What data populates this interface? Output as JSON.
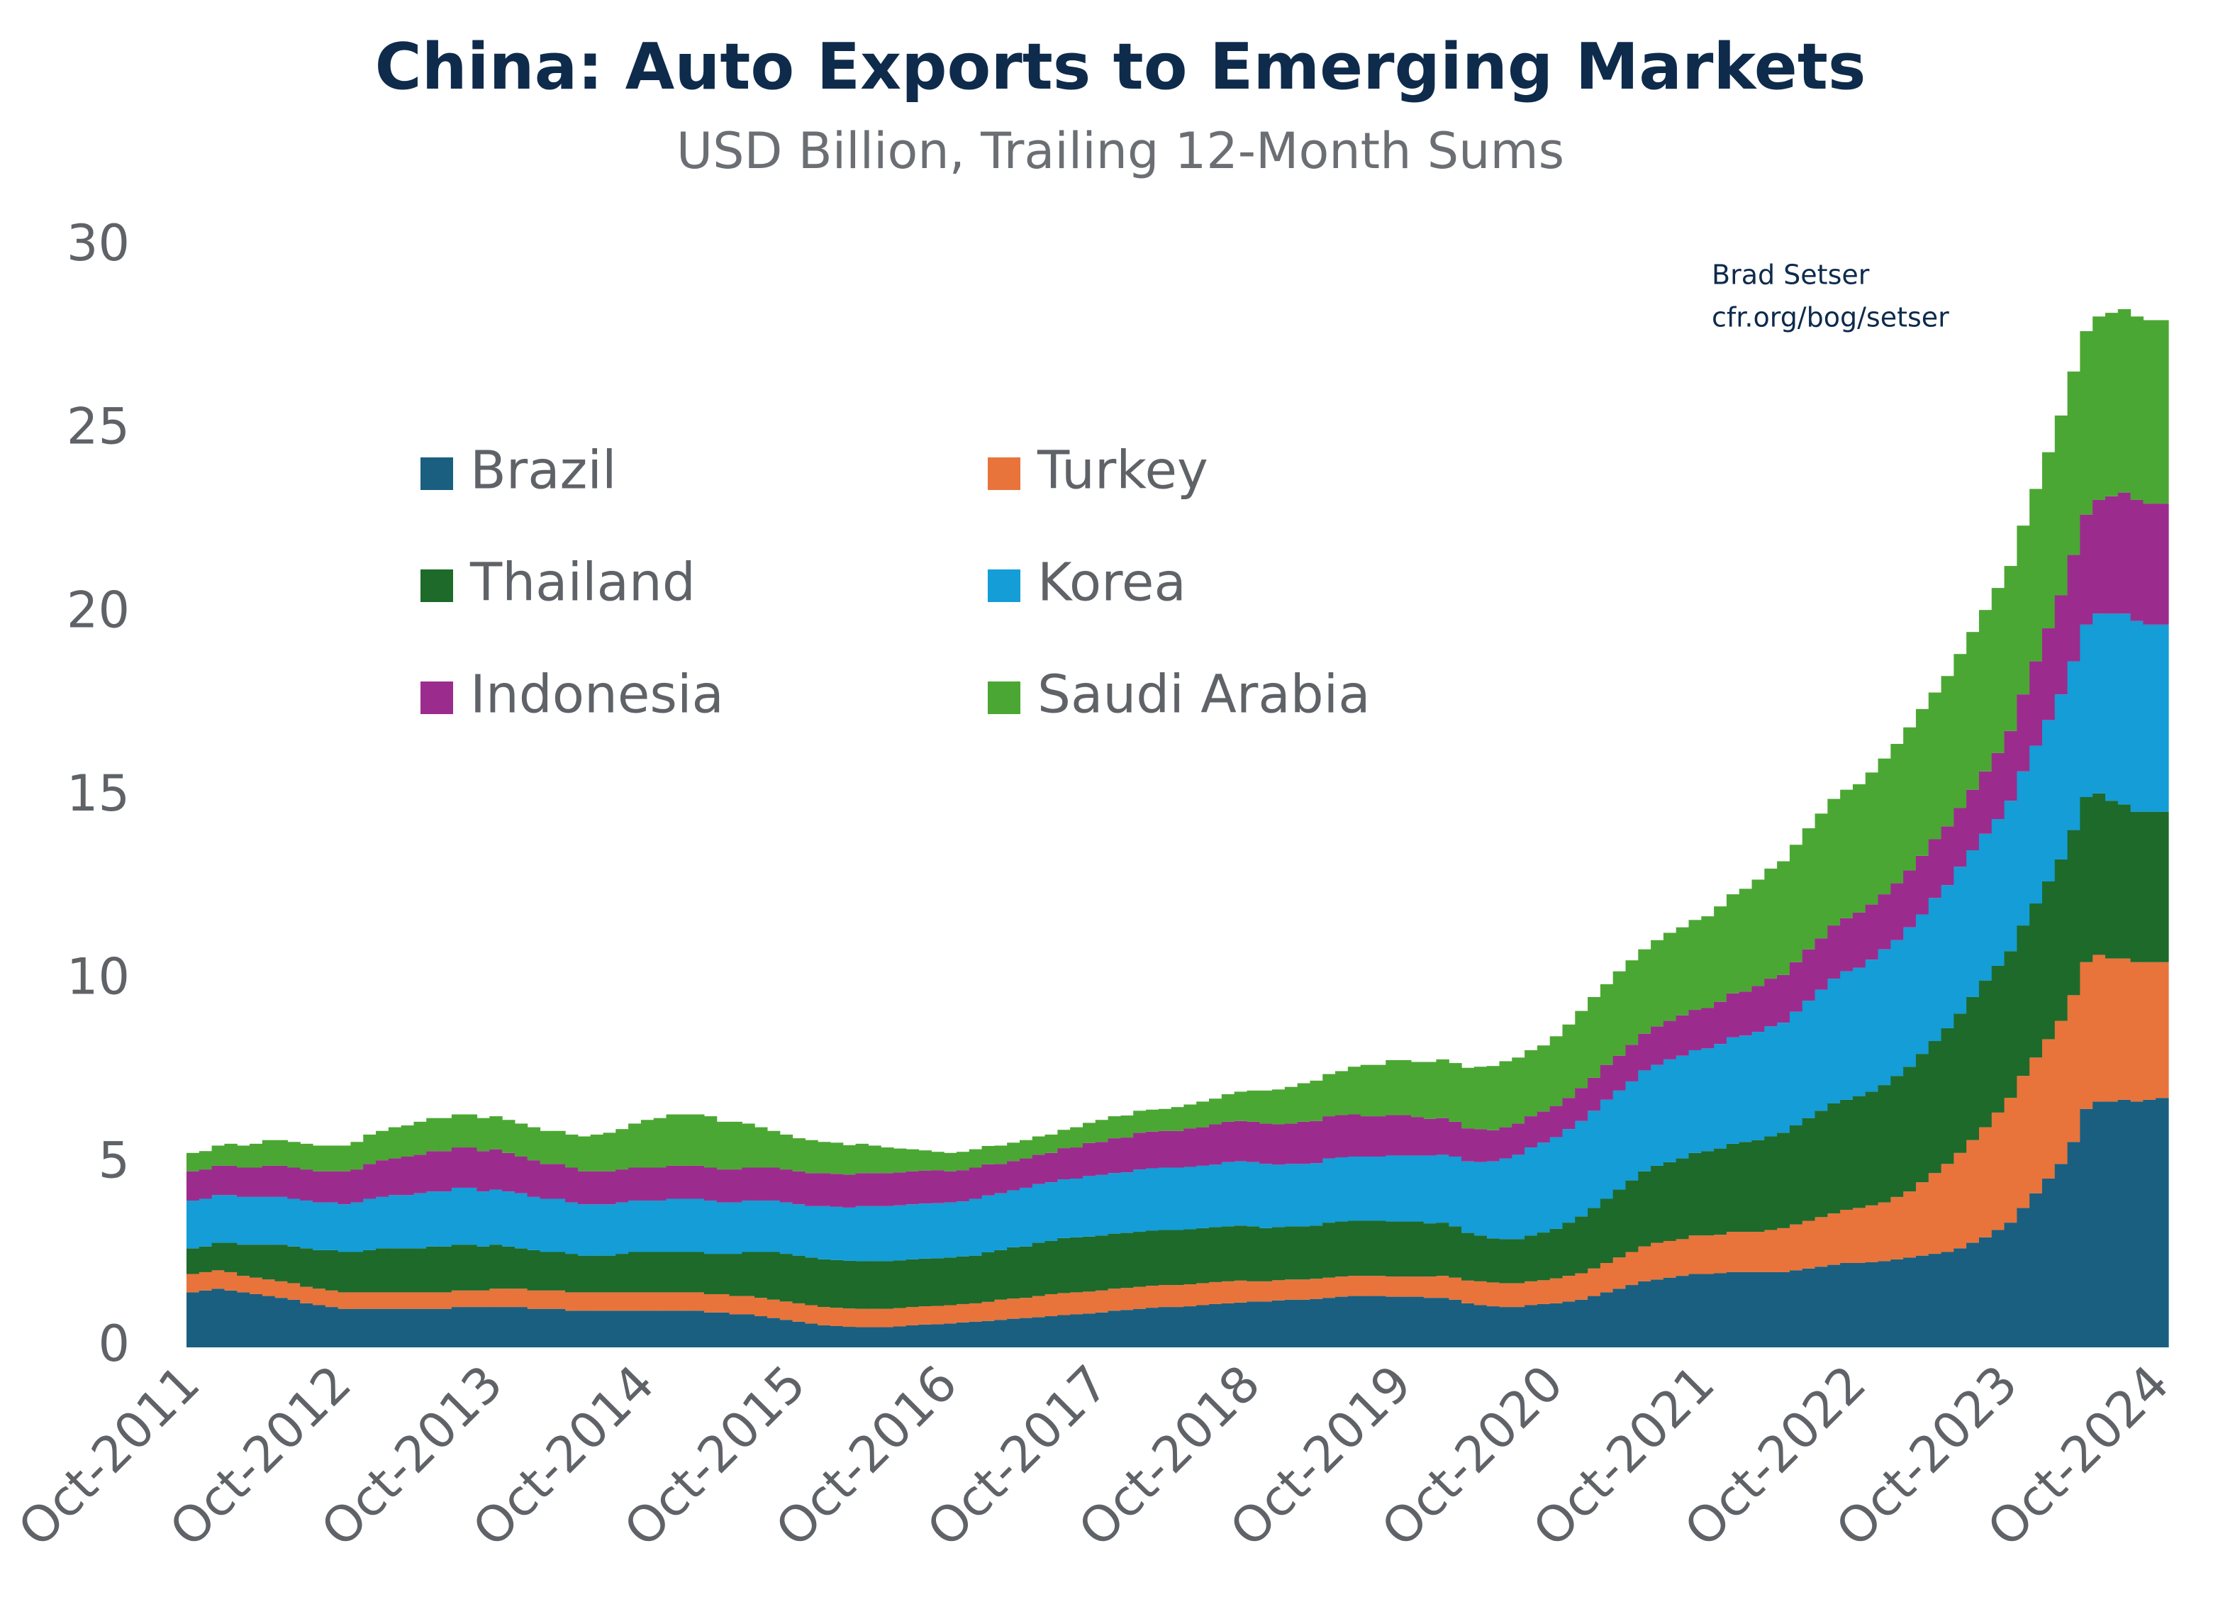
{
  "chart_data": {
    "type": "stacked_bar",
    "title": "China: Auto Exports to Emerging Markets",
    "subtitle": "USD Billion, Trailing 12-Month Sums",
    "annotations": [
      "Brad Setser",
      "cfr.org/bog/setser"
    ],
    "ylim": [
      0,
      30
    ],
    "yticks": [
      0,
      5,
      10,
      15,
      20,
      25,
      30
    ],
    "grid": false,
    "categories": [
      "Oct-2011",
      null,
      null,
      null,
      null,
      null,
      null,
      null,
      null,
      null,
      null,
      null,
      "Oct-2012",
      null,
      null,
      null,
      null,
      null,
      null,
      null,
      null,
      null,
      null,
      null,
      "Oct-2013",
      null,
      null,
      null,
      null,
      null,
      null,
      null,
      null,
      null,
      null,
      null,
      "Oct-2014",
      null,
      null,
      null,
      null,
      null,
      null,
      null,
      null,
      null,
      null,
      null,
      "Oct-2015",
      null,
      null,
      null,
      null,
      null,
      null,
      null,
      null,
      null,
      null,
      null,
      "Oct-2016",
      null,
      null,
      null,
      null,
      null,
      null,
      null,
      null,
      null,
      null,
      null,
      "Oct-2017",
      null,
      null,
      null,
      null,
      null,
      null,
      null,
      null,
      null,
      null,
      null,
      "Oct-2018",
      null,
      null,
      null,
      null,
      null,
      null,
      null,
      null,
      null,
      null,
      null,
      "Oct-2019",
      null,
      null,
      null,
      null,
      null,
      null,
      null,
      null,
      null,
      null,
      null,
      "Oct-2020",
      null,
      null,
      null,
      null,
      null,
      null,
      null,
      null,
      null,
      null,
      null,
      "Oct-2021",
      null,
      null,
      null,
      null,
      null,
      null,
      null,
      null,
      null,
      null,
      null,
      "Oct-2022",
      null,
      null,
      null,
      null,
      null,
      null,
      null,
      null,
      null,
      null,
      null,
      "Oct-2023",
      null,
      null,
      null,
      null,
      null,
      null,
      null,
      null,
      null,
      null,
      null,
      "Oct-2024"
    ],
    "series": [
      {
        "name": "Brazil",
        "color": "#1a5f80",
        "values": [
          1.5,
          1.55,
          1.6,
          1.55,
          1.5,
          1.45,
          1.4,
          1.35,
          1.3,
          1.2,
          1.15,
          1.1,
          1.05,
          1.05,
          1.05,
          1.05,
          1.05,
          1.05,
          1.05,
          1.05,
          1.05,
          1.1,
          1.1,
          1.1,
          1.1,
          1.1,
          1.1,
          1.05,
          1.05,
          1.05,
          1.0,
          1.0,
          1.0,
          1.0,
          1.0,
          1.0,
          1.0,
          1.0,
          1.0,
          1.0,
          1.0,
          0.95,
          0.95,
          0.9,
          0.9,
          0.85,
          0.8,
          0.75,
          0.7,
          0.65,
          0.6,
          0.58,
          0.56,
          0.55,
          0.55,
          0.55,
          0.57,
          0.6,
          0.62,
          0.63,
          0.65,
          0.68,
          0.7,
          0.72,
          0.75,
          0.78,
          0.8,
          0.82,
          0.85,
          0.88,
          0.9,
          0.92,
          0.95,
          1.0,
          1.02,
          1.05,
          1.08,
          1.1,
          1.1,
          1.12,
          1.15,
          1.18,
          1.2,
          1.22,
          1.25,
          1.25,
          1.28,
          1.3,
          1.3,
          1.32,
          1.35,
          1.38,
          1.4,
          1.4,
          1.4,
          1.38,
          1.38,
          1.38,
          1.35,
          1.35,
          1.3,
          1.2,
          1.15,
          1.12,
          1.1,
          1.1,
          1.15,
          1.18,
          1.2,
          1.25,
          1.3,
          1.4,
          1.5,
          1.6,
          1.7,
          1.8,
          1.85,
          1.9,
          1.95,
          2.0,
          2.0,
          2.02,
          2.05,
          2.05,
          2.05,
          2.05,
          2.05,
          2.1,
          2.15,
          2.2,
          2.25,
          2.3,
          2.3,
          2.32,
          2.35,
          2.4,
          2.45,
          2.5,
          2.55,
          2.6,
          2.7,
          2.85,
          3.0,
          3.2,
          3.4,
          3.8,
          4.2,
          4.6,
          5.0,
          5.6,
          6.5,
          6.7,
          6.7,
          6.75,
          6.7,
          6.75,
          6.8
        ]
      },
      {
        "name": "Turkey",
        "color": "#e8743b",
        "values": [
          0.5,
          0.5,
          0.5,
          0.5,
          0.45,
          0.45,
          0.45,
          0.45,
          0.45,
          0.45,
          0.45,
          0.45,
          0.45,
          0.45,
          0.45,
          0.45,
          0.45,
          0.45,
          0.45,
          0.45,
          0.45,
          0.45,
          0.45,
          0.45,
          0.5,
          0.5,
          0.5,
          0.5,
          0.5,
          0.5,
          0.5,
          0.5,
          0.5,
          0.5,
          0.5,
          0.5,
          0.5,
          0.5,
          0.5,
          0.5,
          0.5,
          0.5,
          0.5,
          0.5,
          0.5,
          0.5,
          0.5,
          0.5,
          0.5,
          0.5,
          0.5,
          0.5,
          0.5,
          0.5,
          0.5,
          0.5,
          0.5,
          0.5,
          0.5,
          0.5,
          0.5,
          0.5,
          0.5,
          0.52,
          0.55,
          0.55,
          0.55,
          0.58,
          0.6,
          0.6,
          0.6,
          0.6,
          0.6,
          0.6,
          0.6,
          0.6,
          0.6,
          0.6,
          0.6,
          0.6,
          0.6,
          0.6,
          0.6,
          0.6,
          0.55,
          0.55,
          0.55,
          0.55,
          0.55,
          0.55,
          0.55,
          0.55,
          0.55,
          0.55,
          0.55,
          0.55,
          0.55,
          0.55,
          0.58,
          0.6,
          0.6,
          0.62,
          0.65,
          0.65,
          0.65,
          0.65,
          0.65,
          0.65,
          0.68,
          0.7,
          0.72,
          0.75,
          0.8,
          0.85,
          0.9,
          0.95,
          1.0,
          1.0,
          1.0,
          1.05,
          1.05,
          1.05,
          1.1,
          1.1,
          1.1,
          1.15,
          1.2,
          1.25,
          1.3,
          1.35,
          1.4,
          1.45,
          1.5,
          1.55,
          1.6,
          1.7,
          1.8,
          2.0,
          2.2,
          2.4,
          2.6,
          2.8,
          3.0,
          3.2,
          3.4,
          3.6,
          3.7,
          3.8,
          3.9,
          4.0,
          4.0,
          4.0,
          3.9,
          3.85,
          3.8,
          3.75,
          3.7
        ]
      },
      {
        "name": "Thailand",
        "color": "#1d6a2b",
        "values": [
          0.7,
          0.7,
          0.75,
          0.8,
          0.85,
          0.9,
          0.95,
          1.0,
          1.0,
          1.05,
          1.05,
          1.1,
          1.1,
          1.1,
          1.15,
          1.2,
          1.2,
          1.2,
          1.2,
          1.25,
          1.25,
          1.25,
          1.25,
          1.2,
          1.2,
          1.15,
          1.1,
          1.1,
          1.05,
          1.05,
          1.05,
          1.0,
          1.0,
          1.0,
          1.05,
          1.1,
          1.1,
          1.1,
          1.1,
          1.1,
          1.1,
          1.1,
          1.1,
          1.15,
          1.2,
          1.25,
          1.3,
          1.3,
          1.3,
          1.3,
          1.3,
          1.3,
          1.3,
          1.3,
          1.3,
          1.3,
          1.3,
          1.3,
          1.3,
          1.3,
          1.3,
          1.3,
          1.3,
          1.35,
          1.35,
          1.4,
          1.4,
          1.45,
          1.45,
          1.5,
          1.5,
          1.5,
          1.5,
          1.5,
          1.5,
          1.5,
          1.5,
          1.5,
          1.5,
          1.5,
          1.5,
          1.5,
          1.5,
          1.5,
          1.5,
          1.45,
          1.45,
          1.45,
          1.45,
          1.45,
          1.5,
          1.5,
          1.5,
          1.5,
          1.5,
          1.5,
          1.5,
          1.5,
          1.45,
          1.45,
          1.4,
          1.3,
          1.25,
          1.2,
          1.2,
          1.2,
          1.25,
          1.3,
          1.35,
          1.45,
          1.55,
          1.65,
          1.75,
          1.85,
          1.95,
          2.05,
          2.1,
          2.15,
          2.2,
          2.25,
          2.3,
          2.35,
          2.4,
          2.45,
          2.5,
          2.55,
          2.6,
          2.7,
          2.8,
          2.9,
          3.0,
          3.0,
          3.05,
          3.1,
          3.2,
          3.3,
          3.4,
          3.5,
          3.6,
          3.7,
          3.8,
          3.9,
          4.0,
          4.0,
          4.0,
          4.1,
          4.2,
          4.3,
          4.4,
          4.5,
          4.5,
          4.4,
          4.3,
          4.2,
          4.1,
          4.1,
          4.1
        ]
      },
      {
        "name": "Korea",
        "color": "#149dd6",
        "values": [
          1.3,
          1.3,
          1.3,
          1.3,
          1.3,
          1.3,
          1.3,
          1.3,
          1.3,
          1.3,
          1.3,
          1.3,
          1.3,
          1.35,
          1.4,
          1.4,
          1.45,
          1.45,
          1.5,
          1.5,
          1.5,
          1.55,
          1.55,
          1.5,
          1.5,
          1.5,
          1.5,
          1.45,
          1.45,
          1.45,
          1.4,
          1.4,
          1.4,
          1.4,
          1.4,
          1.4,
          1.4,
          1.4,
          1.45,
          1.45,
          1.45,
          1.45,
          1.4,
          1.4,
          1.4,
          1.4,
          1.4,
          1.4,
          1.4,
          1.4,
          1.45,
          1.45,
          1.45,
          1.5,
          1.5,
          1.5,
          1.5,
          1.5,
          1.5,
          1.5,
          1.5,
          1.5,
          1.55,
          1.55,
          1.55,
          1.55,
          1.6,
          1.6,
          1.6,
          1.6,
          1.6,
          1.65,
          1.65,
          1.65,
          1.65,
          1.7,
          1.7,
          1.7,
          1.7,
          1.7,
          1.7,
          1.7,
          1.75,
          1.75,
          1.75,
          1.75,
          1.7,
          1.7,
          1.7,
          1.7,
          1.75,
          1.75,
          1.75,
          1.75,
          1.75,
          1.8,
          1.8,
          1.8,
          1.85,
          1.85,
          1.9,
          1.95,
          2.0,
          2.1,
          2.2,
          2.3,
          2.4,
          2.45,
          2.5,
          2.55,
          2.6,
          2.65,
          2.7,
          2.7,
          2.7,
          2.75,
          2.75,
          2.8,
          2.8,
          2.8,
          2.8,
          2.85,
          2.9,
          2.9,
          2.95,
          3.0,
          3.0,
          3.1,
          3.2,
          3.3,
          3.4,
          3.5,
          3.5,
          3.6,
          3.7,
          3.7,
          3.8,
          3.8,
          3.9,
          3.9,
          4.0,
          4.0,
          4.0,
          4.0,
          4.1,
          4.2,
          4.3,
          4.4,
          4.5,
          4.6,
          4.7,
          4.9,
          5.1,
          5.2,
          5.2,
          5.1,
          5.1
        ]
      },
      {
        "name": "Indonesia",
        "color": "#9b2c8e",
        "values": [
          0.8,
          0.8,
          0.8,
          0.8,
          0.8,
          0.8,
          0.85,
          0.85,
          0.85,
          0.85,
          0.85,
          0.85,
          0.9,
          0.9,
          0.95,
          1.0,
          1.0,
          1.05,
          1.05,
          1.1,
          1.1,
          1.1,
          1.1,
          1.1,
          1.1,
          1.05,
          1.0,
          1.0,
          0.95,
          0.95,
          0.95,
          0.9,
          0.9,
          0.9,
          0.9,
          0.9,
          0.9,
          0.9,
          0.9,
          0.9,
          0.9,
          0.9,
          0.9,
          0.9,
          0.9,
          0.9,
          0.9,
          0.9,
          0.9,
          0.9,
          0.9,
          0.9,
          0.9,
          0.9,
          0.9,
          0.9,
          0.9,
          0.9,
          0.9,
          0.9,
          0.85,
          0.85,
          0.85,
          0.85,
          0.8,
          0.8,
          0.8,
          0.8,
          0.8,
          0.85,
          0.85,
          0.9,
          0.9,
          0.95,
          0.95,
          1.0,
          1.0,
          1.0,
          1.0,
          1.05,
          1.05,
          1.1,
          1.1,
          1.1,
          1.1,
          1.1,
          1.1,
          1.1,
          1.15,
          1.15,
          1.15,
          1.15,
          1.15,
          1.1,
          1.1,
          1.1,
          1.1,
          1.05,
          1.0,
          1.0,
          0.95,
          0.9,
          0.9,
          0.85,
          0.85,
          0.85,
          0.85,
          0.85,
          0.85,
          0.85,
          0.9,
          0.9,
          0.95,
          0.95,
          1.0,
          1.0,
          1.05,
          1.05,
          1.1,
          1.1,
          1.1,
          1.15,
          1.2,
          1.2,
          1.25,
          1.3,
          1.3,
          1.35,
          1.4,
          1.4,
          1.45,
          1.45,
          1.5,
          1.5,
          1.5,
          1.55,
          1.55,
          1.6,
          1.6,
          1.6,
          1.6,
          1.65,
          1.7,
          1.8,
          1.9,
          2.1,
          2.3,
          2.5,
          2.7,
          2.9,
          3.0,
          3.1,
          3.2,
          3.3,
          3.3,
          3.3,
          3.3
        ]
      },
      {
        "name": "Saudi Arabia",
        "color": "#4ba733",
        "values": [
          0.5,
          0.5,
          0.55,
          0.6,
          0.6,
          0.65,
          0.7,
          0.7,
          0.7,
          0.7,
          0.7,
          0.7,
          0.7,
          0.75,
          0.8,
          0.8,
          0.85,
          0.85,
          0.9,
          0.9,
          0.9,
          0.9,
          0.9,
          0.9,
          0.9,
          0.9,
          0.9,
          0.9,
          0.9,
          0.9,
          0.9,
          0.95,
          1.0,
          1.05,
          1.1,
          1.2,
          1.3,
          1.35,
          1.4,
          1.4,
          1.4,
          1.4,
          1.3,
          1.3,
          1.2,
          1.1,
          1.0,
          0.95,
          0.9,
          0.9,
          0.85,
          0.85,
          0.8,
          0.8,
          0.75,
          0.7,
          0.65,
          0.6,
          0.55,
          0.5,
          0.5,
          0.5,
          0.5,
          0.5,
          0.5,
          0.5,
          0.5,
          0.5,
          0.5,
          0.5,
          0.55,
          0.55,
          0.6,
          0.6,
          0.6,
          0.6,
          0.6,
          0.6,
          0.65,
          0.65,
          0.7,
          0.7,
          0.75,
          0.8,
          0.85,
          0.9,
          0.95,
          1.0,
          1.05,
          1.1,
          1.15,
          1.2,
          1.3,
          1.4,
          1.4,
          1.5,
          1.5,
          1.5,
          1.55,
          1.6,
          1.6,
          1.65,
          1.7,
          1.75,
          1.8,
          1.8,
          1.8,
          1.8,
          1.9,
          2.0,
          2.1,
          2.2,
          2.2,
          2.3,
          2.3,
          2.3,
          2.35,
          2.4,
          2.4,
          2.45,
          2.5,
          2.6,
          2.7,
          2.8,
          2.9,
          3.0,
          3.1,
          3.2,
          3.3,
          3.4,
          3.45,
          3.5,
          3.5,
          3.6,
          3.7,
          3.8,
          3.9,
          4.0,
          4.0,
          4.1,
          4.2,
          4.3,
          4.4,
          4.5,
          4.5,
          4.6,
          4.7,
          4.8,
          4.9,
          5.0,
          5.0,
          5.0,
          5.0,
          5.0,
          5.0,
          5.0,
          5.0
        ]
      }
    ]
  }
}
